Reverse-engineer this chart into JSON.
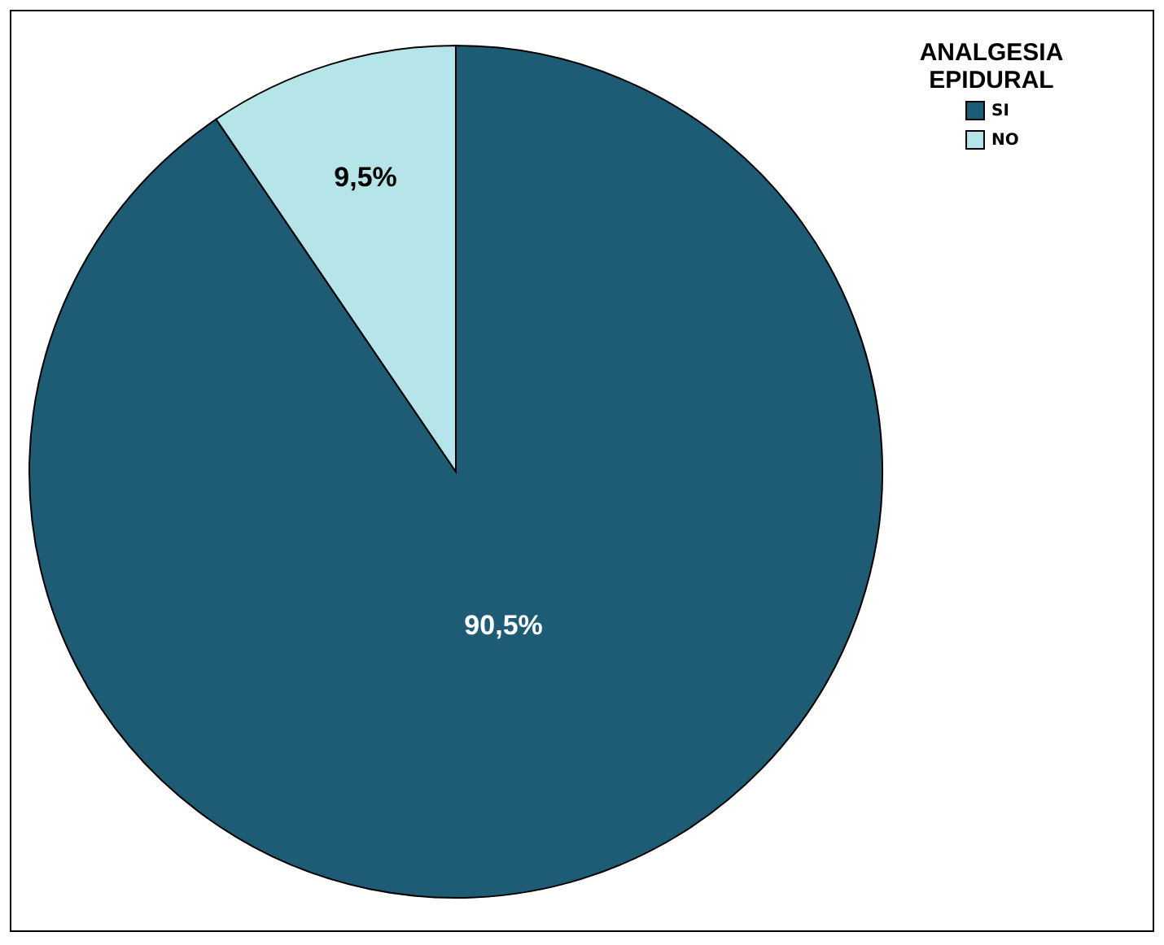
{
  "chart_data": {
    "type": "pie",
    "legend_title": "ANALGESIA EPIDURAL",
    "categories": [
      "SI",
      "NO"
    ],
    "values": [
      90.5,
      9.5
    ],
    "colors": [
      "#1d5c74",
      "#b5e5e8"
    ],
    "value_labels": [
      "90,5%",
      "9,5%"
    ],
    "legend": "top right"
  }
}
